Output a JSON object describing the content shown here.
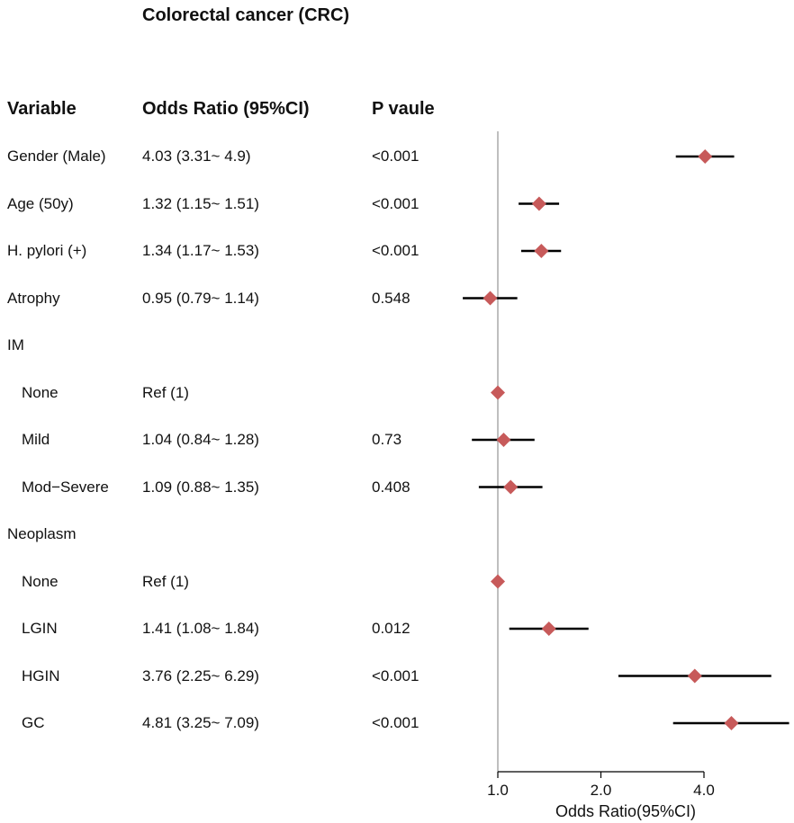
{
  "title": "Colorectal cancer (CRC)",
  "headers": {
    "variable": "Variable",
    "or": "Odds Ratio (95%CI)",
    "p": "P vaule"
  },
  "rows": [
    {
      "label": "Gender (Male)",
      "indent": false,
      "or_text": "4.03 (3.31~ 4.9)",
      "p_text": "<0.001"
    },
    {
      "label": "Age (50y)",
      "indent": false,
      "or_text": "1.32 (1.15~ 1.51)",
      "p_text": "<0.001"
    },
    {
      "label": "H. pylori (+)",
      "indent": false,
      "or_text": "1.34 (1.17~ 1.53)",
      "p_text": "<0.001"
    },
    {
      "label": "Atrophy",
      "indent": false,
      "or_text": "0.95 (0.79~ 1.14)",
      "p_text": "0.548"
    },
    {
      "label": "IM",
      "indent": false,
      "or_text": "",
      "p_text": ""
    },
    {
      "label": "None",
      "indent": true,
      "or_text": "Ref (1)",
      "p_text": ""
    },
    {
      "label": "Mild",
      "indent": true,
      "or_text": "1.04 (0.84~ 1.28)",
      "p_text": "0.73"
    },
    {
      "label": "Mod−Severe",
      "indent": true,
      "or_text": "1.09 (0.88~ 1.35)",
      "p_text": "0.408"
    },
    {
      "label": "Neoplasm",
      "indent": false,
      "or_text": "",
      "p_text": ""
    },
    {
      "label": "None",
      "indent": true,
      "or_text": "Ref (1)",
      "p_text": ""
    },
    {
      "label": "LGIN",
      "indent": true,
      "or_text": "1.41 (1.08~ 1.84)",
      "p_text": "0.012"
    },
    {
      "label": "HGIN",
      "indent": true,
      "or_text": "3.76 (2.25~ 6.29)",
      "p_text": "<0.001"
    },
    {
      "label": "GC",
      "indent": true,
      "or_text": "4.81 (3.25~ 7.09)",
      "p_text": "<0.001"
    }
  ],
  "chart_data": {
    "type": "forest",
    "scale": "log2",
    "reference_line": 1.0,
    "xlabel": "Odds Ratio(95%CI)",
    "ticks": [
      {
        "value": 1.0,
        "label": "1.0"
      },
      {
        "value": 2.0,
        "label": "2.0"
      },
      {
        "value": 4.0,
        "label": "4.0"
      }
    ],
    "xlim": [
      0.7,
      8.0
    ],
    "points": [
      {
        "or": 4.03,
        "lo": 3.31,
        "hi": 4.9
      },
      {
        "or": 1.32,
        "lo": 1.15,
        "hi": 1.51
      },
      {
        "or": 1.34,
        "lo": 1.17,
        "hi": 1.53
      },
      {
        "or": 0.95,
        "lo": 0.79,
        "hi": 1.14
      },
      null,
      {
        "or": 1.0,
        "lo": 1.0,
        "hi": 1.0
      },
      {
        "or": 1.04,
        "lo": 0.84,
        "hi": 1.28
      },
      {
        "or": 1.09,
        "lo": 0.88,
        "hi": 1.35
      },
      null,
      {
        "or": 1.0,
        "lo": 1.0,
        "hi": 1.0
      },
      {
        "or": 1.41,
        "lo": 1.08,
        "hi": 1.84
      },
      {
        "or": 3.76,
        "lo": 2.25,
        "hi": 6.29
      },
      {
        "or": 4.81,
        "lo": 3.25,
        "hi": 7.09
      }
    ],
    "colors": {
      "marker": "#c75a5a",
      "ci": "#000000",
      "refline": "#aaaaaa"
    }
  }
}
